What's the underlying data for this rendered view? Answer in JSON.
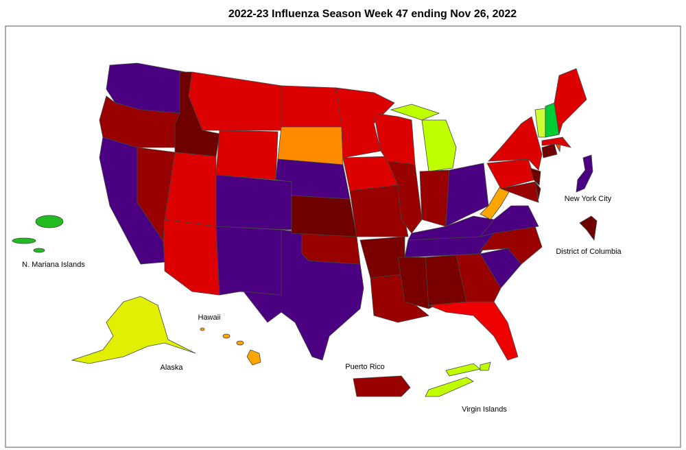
{
  "title": "2022-23 Influenza Season Week 47 ending Nov 26, 2022",
  "labels": [
    "N. Mariana Islands",
    "Hawaii",
    "Alaska",
    "Puerto Rico",
    "Virgin Islands",
    "New York City",
    "District of Columbia"
  ]
}
